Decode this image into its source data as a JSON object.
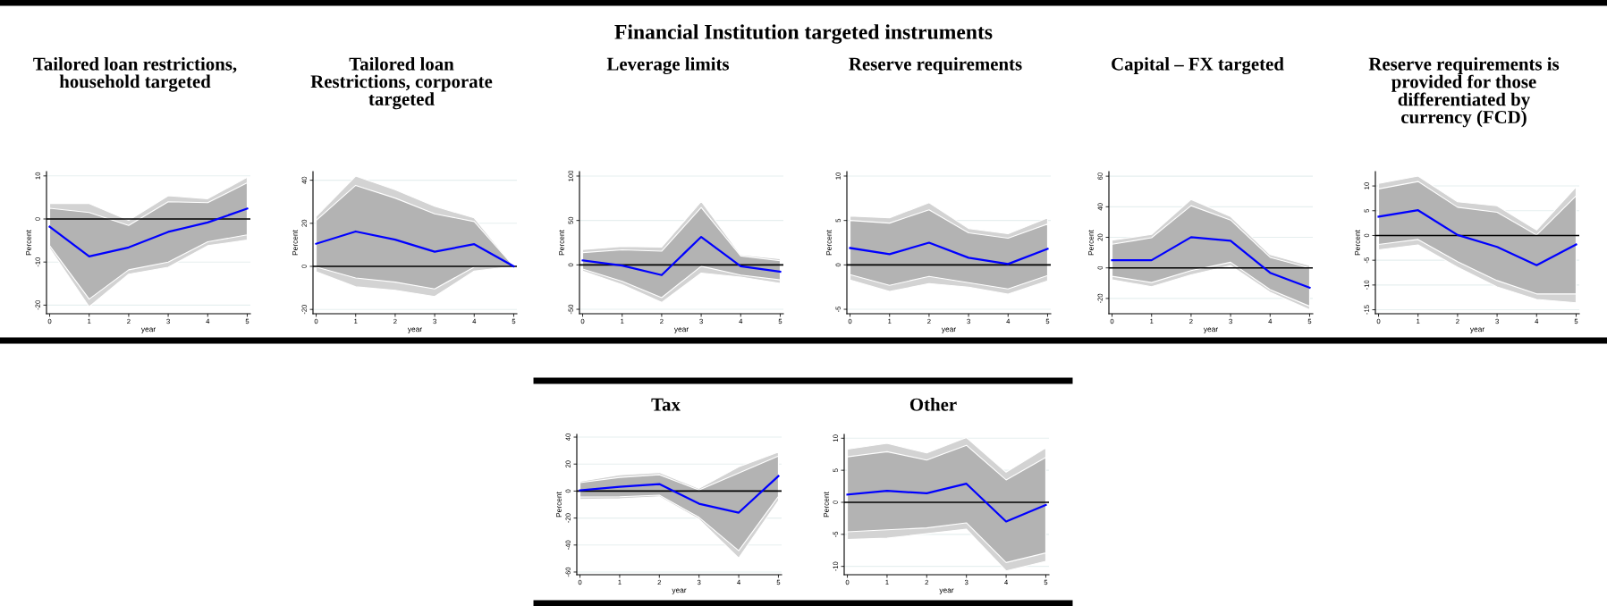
{
  "chart_data": [
    {
      "type": "other",
      "title": "Financial Institution targeted instruments"
    },
    {
      "type": "line",
      "title": "Tailored loan restrictions,\nhousehold targeted",
      "xlabel": "year",
      "ylabel": "Percent",
      "x": [
        0,
        1,
        2,
        3,
        4,
        5
      ],
      "xlim": [
        -0.08,
        5.08
      ],
      "xticks": [
        0,
        1,
        2,
        3,
        4,
        5
      ],
      "ylim": [
        -22,
        11
      ],
      "yticks": [
        -20,
        -10,
        0,
        10
      ],
      "grid": "y",
      "ref_lines": [
        {
          "axis": "y",
          "value": 0,
          "color": "#000000"
        }
      ],
      "series": [
        {
          "type": "area",
          "color": "#d3d3d3",
          "values": [
            null,
            null,
            null,
            null,
            null,
            null
          ],
          "lower": [
            -6.8,
            -20.4,
            -12.8,
            -11.2,
            -6.2,
            -4.9
          ],
          "upper": [
            3.6,
            3.6,
            -0.3,
            5.4,
            4.7,
            9.7
          ]
        },
        {
          "type": "area",
          "color": "#b3b3b3",
          "values": [
            null,
            null,
            null,
            null,
            null,
            null
          ],
          "lower": [
            -6.2,
            -18.6,
            -11.8,
            -10.0,
            -5.3,
            -3.7
          ],
          "upper": [
            2.5,
            1.5,
            -1.5,
            4.0,
            3.8,
            8.4
          ]
        },
        {
          "type": "line",
          "color": "#0000ff",
          "values": [
            -1.8,
            -8.7,
            -6.6,
            -3.0,
            -0.8,
            2.4
          ]
        }
      ]
    },
    {
      "type": "line",
      "title": "Tailored loan\nRestrictions, corporate\ntargeted",
      "xlabel": "year",
      "ylabel": "Percent",
      "x": [
        0,
        1,
        2,
        3,
        4,
        5
      ],
      "xlim": [
        -0.08,
        5.08
      ],
      "xticks": [
        0,
        1,
        2,
        3,
        4,
        5
      ],
      "ylim": [
        -22,
        44
      ],
      "yticks": [
        -20,
        0,
        20,
        40
      ],
      "grid": "y",
      "ref_lines": [
        {
          "axis": "y",
          "value": 0,
          "color": "#000000"
        }
      ],
      "series": [
        {
          "type": "area",
          "color": "#d3d3d3",
          "values": [
            null,
            null,
            null,
            null,
            null,
            null
          ],
          "lower": [
            -2.5,
            -9.5,
            -11.1,
            -14.0,
            -2.2,
            0
          ],
          "upper": [
            23.2,
            41.9,
            35.6,
            27.9,
            22.5,
            0
          ]
        },
        {
          "type": "area",
          "color": "#b3b3b3",
          "values": [
            null,
            null,
            null,
            null,
            null,
            null
          ],
          "lower": [
            -0.3,
            -5.4,
            -7.3,
            -10.5,
            -0.3,
            0
          ],
          "upper": [
            21.3,
            37.6,
            31.7,
            24.4,
            20.8,
            0
          ]
        },
        {
          "type": "line",
          "color": "#0000ff",
          "values": [
            10.5,
            16.2,
            12.4,
            6.8,
            10.3,
            0
          ]
        }
      ]
    },
    {
      "type": "line",
      "title": "Leverage limits",
      "xlabel": "year",
      "ylabel": "Percent",
      "x": [
        0,
        1,
        2,
        3,
        4,
        5
      ],
      "xlim": [
        -0.08,
        5.08
      ],
      "xticks": [
        0,
        1,
        2,
        3,
        4,
        5
      ],
      "ylim": [
        -55,
        105
      ],
      "yticks": [
        -50,
        0,
        50,
        100
      ],
      "grid": "y",
      "ref_lines": [
        {
          "axis": "y",
          "value": 0,
          "color": "#000000"
        }
      ],
      "series": [
        {
          "type": "area",
          "color": "#d3d3d3",
          "values": [
            null,
            null,
            null,
            null,
            null,
            null
          ],
          "lower": [
            -6.9,
            -22.3,
            -42.3,
            -9.2,
            -13.8,
            -20.8
          ],
          "upper": [
            17.3,
            20.8,
            20.0,
            71.5,
            11.5,
            6.9
          ]
        },
        {
          "type": "area",
          "color": "#b3b3b3",
          "values": [
            null,
            null,
            null,
            null,
            null,
            null
          ],
          "lower": [
            -4.6,
            -18.5,
            -36.9,
            -1.5,
            -11.5,
            -16.9
          ],
          "upper": [
            13.8,
            16.9,
            15.4,
            64.6,
            10.0,
            4.6
          ]
        },
        {
          "type": "line",
          "color": "#0000ff",
          "values": [
            5.0,
            -0.8,
            -11.5,
            31.5,
            -1.5,
            -7.7
          ]
        }
      ]
    },
    {
      "type": "line",
      "title": "Reserve requirements",
      "xlabel": "year",
      "ylabel": "Percent",
      "x": [
        0,
        1,
        2,
        3,
        4,
        5
      ],
      "xlim": [
        -0.08,
        5.08
      ],
      "xticks": [
        0,
        1,
        2,
        3,
        4,
        5
      ],
      "ylim": [
        -5.5,
        10.5
      ],
      "yticks": [
        -5,
        0,
        5,
        10
      ],
      "grid": "y",
      "ref_lines": [
        {
          "axis": "y",
          "value": 0,
          "color": "#000000"
        }
      ],
      "series": [
        {
          "type": "area",
          "color": "#d3d3d3",
          "values": [
            null,
            null,
            null,
            null,
            null,
            null
          ],
          "lower": [
            -1.7,
            -3.0,
            -2.1,
            -2.5,
            -3.3,
            -1.8
          ],
          "upper": [
            5.5,
            5.3,
            7.0,
            4.1,
            3.5,
            5.3
          ]
        },
        {
          "type": "area",
          "color": "#b3b3b3",
          "values": [
            null,
            null,
            null,
            null,
            null,
            null
          ],
          "lower": [
            -1.1,
            -2.3,
            -1.3,
            -2.0,
            -2.7,
            -1.2
          ],
          "upper": [
            5.0,
            4.7,
            6.2,
            3.6,
            3.0,
            4.6
          ]
        },
        {
          "type": "line",
          "color": "#0000ff",
          "values": [
            1.9,
            1.2,
            2.5,
            0.8,
            0.1,
            1.8
          ]
        }
      ]
    },
    {
      "type": "line",
      "title": "Capital – FX targeted",
      "xlabel": "year",
      "ylabel": "Percent",
      "x": [
        0,
        1,
        2,
        3,
        4,
        5
      ],
      "xlim": [
        -0.08,
        5.08
      ],
      "xticks": [
        0,
        1,
        2,
        3,
        4,
        5
      ],
      "ylim": [
        -30,
        63
      ],
      "yticks": [
        -20,
        0,
        20,
        40,
        60
      ],
      "grid": "y",
      "ref_lines": [
        {
          "axis": "y",
          "value": 0,
          "color": "#000000"
        }
      ],
      "series": [
        {
          "type": "area",
          "color": "#d3d3d3",
          "values": [
            null,
            null,
            null,
            null,
            null,
            null
          ],
          "lower": [
            -7.8,
            -12.3,
            -4.6,
            1.4,
            -16.0,
            -27.4
          ],
          "upper": [
            18.1,
            21.9,
            44.8,
            33.6,
            8.7,
            1.6
          ]
        },
        {
          "type": "area",
          "color": "#b3b3b3",
          "values": [
            null,
            null,
            null,
            null,
            null,
            null
          ],
          "lower": [
            -5.5,
            -9.6,
            -1.8,
            3.7,
            -14.2,
            -25.1
          ],
          "upper": [
            15.5,
            19.7,
            40.7,
            31.3,
            6.9,
            0
          ]
        },
        {
          "type": "line",
          "color": "#0000ff",
          "values": [
            5.0,
            5.0,
            20.1,
            17.8,
            -3.2,
            -13.0
          ]
        }
      ]
    },
    {
      "type": "line",
      "title": "Reserve requirements is\nprovided for those\ndifferentiated by\ncurrency (FCD)",
      "xlabel": "year",
      "ylabel": "Percent",
      "x": [
        0,
        1,
        2,
        3,
        4,
        5
      ],
      "xlim": [
        -0.08,
        5.08
      ],
      "xticks": [
        0,
        1,
        2,
        3,
        4,
        5
      ],
      "ylim": [
        -15.8,
        12.9
      ],
      "yticks": [
        -15,
        -10,
        -5,
        0,
        5,
        10
      ],
      "grid": "y",
      "ref_lines": [
        {
          "axis": "y",
          "value": 0,
          "color": "#000000"
        }
      ],
      "series": [
        {
          "type": "area",
          "color": "#d3d3d3",
          "values": [
            null,
            null,
            null,
            null,
            null,
            null
          ],
          "lower": [
            -2.9,
            -1.9,
            -6.4,
            -10.4,
            -12.9,
            -13.6
          ],
          "upper": [
            10.5,
            12.0,
            6.8,
            6.0,
            1.1,
            9.8
          ]
        },
        {
          "type": "area",
          "color": "#b3b3b3",
          "values": [
            null,
            null,
            null,
            null,
            null,
            null
          ],
          "lower": [
            -1.8,
            -0.8,
            -5.3,
            -9.1,
            -11.8,
            -11.8
          ],
          "upper": [
            9.4,
            10.9,
            5.7,
            4.7,
            0.1,
            8.0
          ]
        },
        {
          "type": "line",
          "color": "#0000ff",
          "values": [
            3.8,
            5.1,
            0.1,
            -2.3,
            -6.0,
            -1.8
          ]
        }
      ]
    },
    {
      "type": "line",
      "title": "Tax",
      "xlabel": "year",
      "ylabel": "Percent",
      "x": [
        0,
        1,
        2,
        3,
        4,
        5
      ],
      "xlim": [
        -0.08,
        5.08
      ],
      "xticks": [
        0,
        1,
        2,
        3,
        4,
        5
      ],
      "ylim": [
        -62,
        42
      ],
      "yticks": [
        -60,
        -40,
        -20,
        0,
        20,
        40
      ],
      "grid": "y",
      "ref_lines": [
        {
          "axis": "y",
          "value": 0,
          "color": "#000000"
        }
      ],
      "series": [
        {
          "type": "area",
          "color": "#d3d3d3",
          "values": [
            null,
            null,
            null,
            null,
            null,
            null
          ],
          "lower": [
            -6.2,
            -5.7,
            -4.2,
            -21.0,
            -49.6,
            -7.2
          ],
          "upper": [
            7.2,
            12.1,
            13.8,
            2.0,
            18.0,
            28.9
          ]
        },
        {
          "type": "area",
          "color": "#b3b3b3",
          "values": [
            null,
            null,
            null,
            null,
            null,
            null
          ],
          "lower": [
            -4.4,
            -4.2,
            -3.0,
            -19.5,
            -44.2,
            -4.0
          ],
          "upper": [
            6.2,
            10.1,
            12.1,
            0.7,
            13.3,
            25.9
          ]
        },
        {
          "type": "line",
          "color": "#0000ff",
          "values": [
            0.5,
            3.2,
            5.2,
            -9.4,
            -16.0,
            11.1
          ]
        }
      ]
    },
    {
      "type": "line",
      "title": "Other",
      "xlabel": "year",
      "ylabel": "Percent",
      "x": [
        0,
        1,
        2,
        3,
        4,
        5
      ],
      "xlim": [
        -0.08,
        5.08
      ],
      "xticks": [
        0,
        1,
        2,
        3,
        4,
        5
      ],
      "ylim": [
        -11.3,
        10.6
      ],
      "yticks": [
        -10,
        -5,
        0,
        5,
        10
      ],
      "grid": "y",
      "ref_lines": [
        {
          "axis": "y",
          "value": 0,
          "color": "#000000"
        }
      ],
      "series": [
        {
          "type": "area",
          "color": "#d3d3d3",
          "values": [
            null,
            null,
            null,
            null,
            null,
            null
          ],
          "lower": [
            -5.8,
            -5.6,
            -4.9,
            -4.2,
            -10.7,
            -9.2
          ],
          "upper": [
            8.3,
            9.2,
            7.7,
            10.1,
            4.7,
            8.5
          ]
        },
        {
          "type": "area",
          "color": "#b3b3b3",
          "values": [
            null,
            null,
            null,
            null,
            null,
            null
          ],
          "lower": [
            -4.6,
            -4.3,
            -4.0,
            -3.2,
            -9.4,
            -7.9
          ],
          "upper": [
            7.1,
            7.9,
            6.6,
            8.9,
            3.5,
            7.0
          ]
        },
        {
          "type": "line",
          "color": "#0000ff",
          "values": [
            1.2,
            1.8,
            1.4,
            2.9,
            -3.0,
            -0.4
          ]
        }
      ]
    }
  ]
}
